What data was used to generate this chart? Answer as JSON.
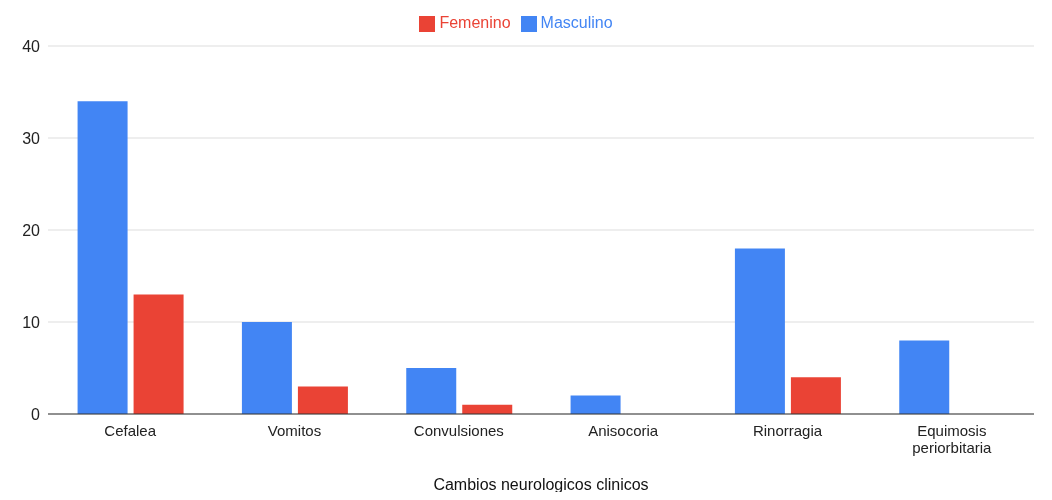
{
  "chart_data": {
    "type": "bar",
    "xlabel": "Cambios neurologicos clinicos",
    "categories": [
      "Cefalea",
      "Vomitos",
      "Convulsiones",
      "Anisocoria",
      "Rinorragia",
      "Equimosis periorbitaria"
    ],
    "series": [
      {
        "name": "Masculino",
        "color": "#4285f4",
        "values": [
          34,
          10,
          5,
          2,
          18,
          8
        ]
      },
      {
        "name": "Femenino",
        "color": "#ea4335",
        "values": [
          13,
          3,
          1,
          0,
          4,
          0
        ]
      }
    ],
    "ylim": [
      0,
      40
    ],
    "yticks": [
      0,
      10,
      20,
      30,
      40
    ],
    "grid": "y",
    "legend": "top"
  }
}
